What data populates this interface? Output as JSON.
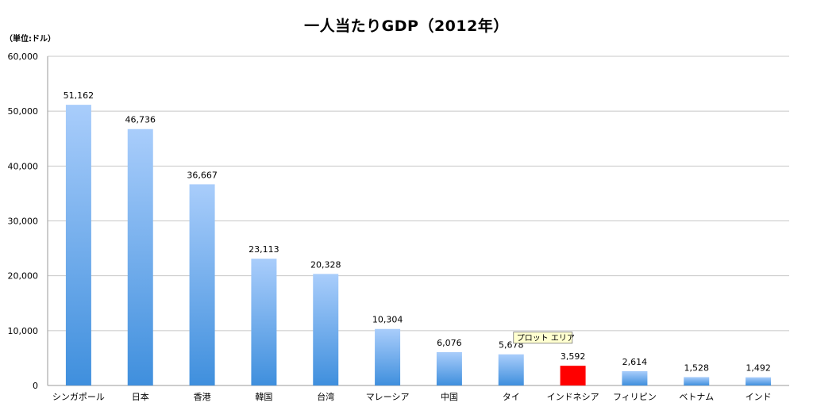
{
  "chart_data": {
    "type": "bar",
    "title": "一人当たりGDP（2012年）",
    "unit_label": "（単位:ドル）",
    "categories": [
      "シンガポール",
      "日本",
      "香港",
      "韓国",
      "台湾",
      "マレーシア",
      "中国",
      "タイ",
      "インドネシア",
      "フィリピン",
      "ベトナム",
      "インド"
    ],
    "values": [
      51162,
      46736,
      36667,
      23113,
      20328,
      10304,
      6076,
      5678,
      3592,
      2614,
      1528,
      1492
    ],
    "value_labels": [
      "51,162",
      "46,736",
      "36,667",
      "23,113",
      "20,328",
      "10,304",
      "6,076",
      "5,678",
      "3,592",
      "2,614",
      "1,528",
      "1,492"
    ],
    "highlight_index": 8,
    "ylim": [
      0,
      60000
    ],
    "yticks": [
      0,
      10000,
      20000,
      30000,
      40000,
      50000,
      60000
    ],
    "ytick_labels": [
      "0",
      "10,000",
      "20,000",
      "30,000",
      "40,000",
      "50,000",
      "60,000"
    ],
    "grid": true,
    "legend": "none",
    "colors": {
      "bar_top": "#a9cdfb",
      "bar_bottom": "#3f8fdd",
      "highlight": "#ff0000",
      "grid": "#c8c8c8",
      "axis": "#9a9a9a"
    },
    "tooltip": {
      "text": "プロット エリア",
      "near_category": "タイ"
    }
  }
}
